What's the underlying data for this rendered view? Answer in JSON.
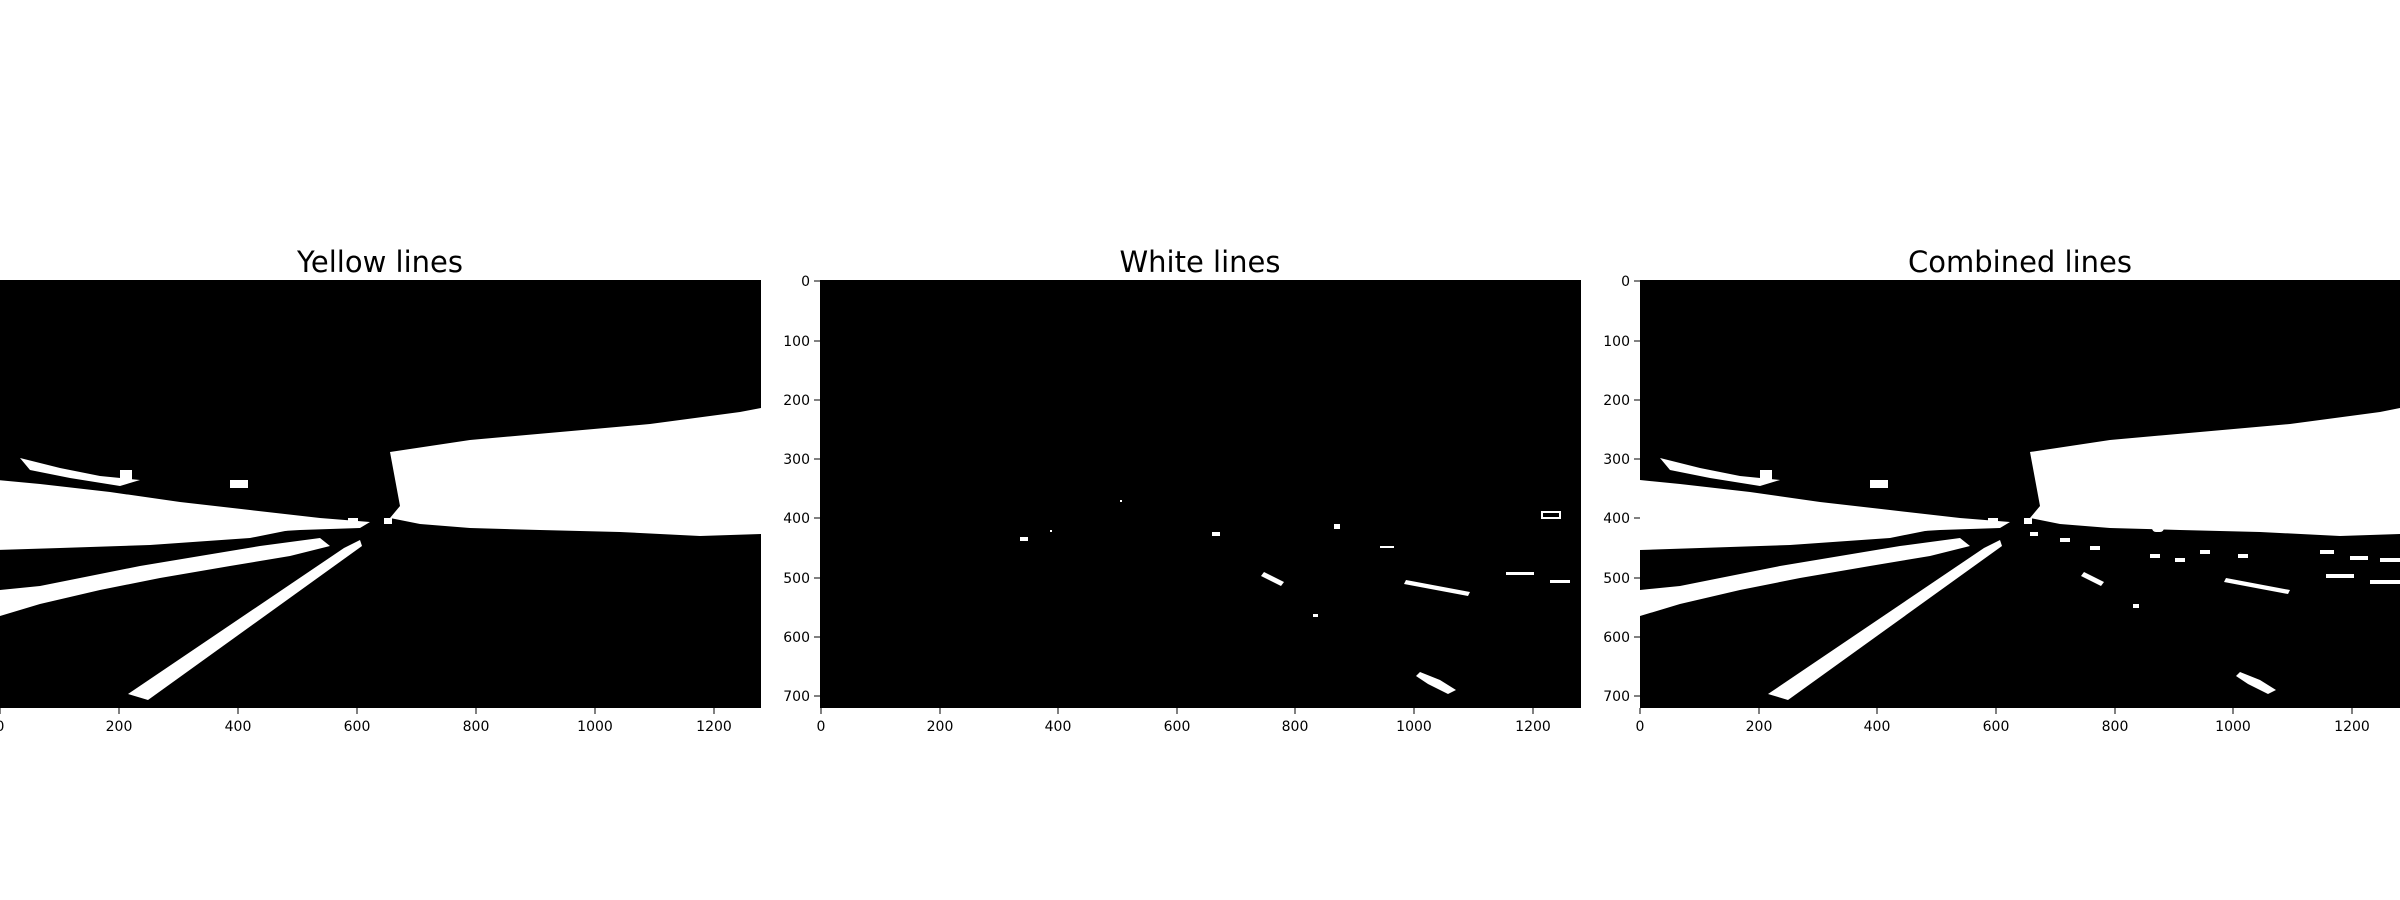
{
  "figure": {
    "panels": [
      {
        "title": "Yellow lines",
        "x_ticks": [
          "0",
          "200",
          "400",
          "600",
          "800",
          "1000",
          "1200"
        ],
        "y_ticks": [],
        "image_xlim": [
          0,
          1280
        ],
        "image_ylim": [
          720,
          0
        ]
      },
      {
        "title": "White lines",
        "x_ticks": [
          "0",
          "200",
          "400",
          "600",
          "800",
          "1000",
          "1200"
        ],
        "y_ticks": [
          "0",
          "100",
          "200",
          "300",
          "400",
          "500",
          "600",
          "700"
        ],
        "image_xlim": [
          0,
          1280
        ],
        "image_ylim": [
          720,
          0
        ]
      },
      {
        "title": "Combined lines",
        "x_ticks": [
          "0",
          "200",
          "400",
          "600",
          "800",
          "1000",
          "1200"
        ],
        "y_ticks": [
          "0",
          "100",
          "200",
          "300",
          "400",
          "500",
          "600",
          "700"
        ],
        "image_xlim": [
          0,
          1280
        ],
        "image_ylim": [
          720,
          0
        ]
      }
    ],
    "colors": {
      "background": "#000000",
      "mask": "#ffffff",
      "text": "#000000"
    }
  }
}
